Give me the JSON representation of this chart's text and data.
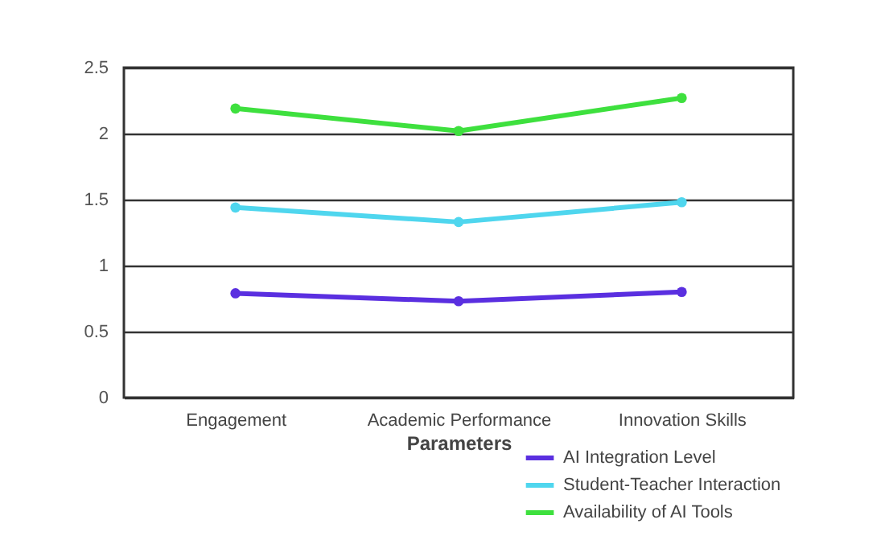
{
  "chart_data": {
    "type": "line",
    "categories": [
      "Engagement",
      "Academic Performance",
      "Innovation Skills"
    ],
    "xlabel": "Parameters",
    "series": [
      {
        "name": "AI Integration Level",
        "color": "#5a2fe0",
        "values": [
          0.79,
          0.73,
          0.8
        ]
      },
      {
        "name": "Student-Teacher Interaction",
        "color": "#4fd6ee",
        "values": [
          1.44,
          1.33,
          1.48
        ]
      },
      {
        "name": "Availability of AI Tools",
        "color": "#3ee03e",
        "values": [
          2.19,
          2.02,
          2.27
        ]
      }
    ],
    "ylim": [
      0,
      2.5
    ],
    "yticks": [
      0,
      0.5,
      1,
      1.5,
      2,
      2.5
    ],
    "grid": "y",
    "legend": "bottom",
    "marker": "circle",
    "line_style": "solid"
  }
}
